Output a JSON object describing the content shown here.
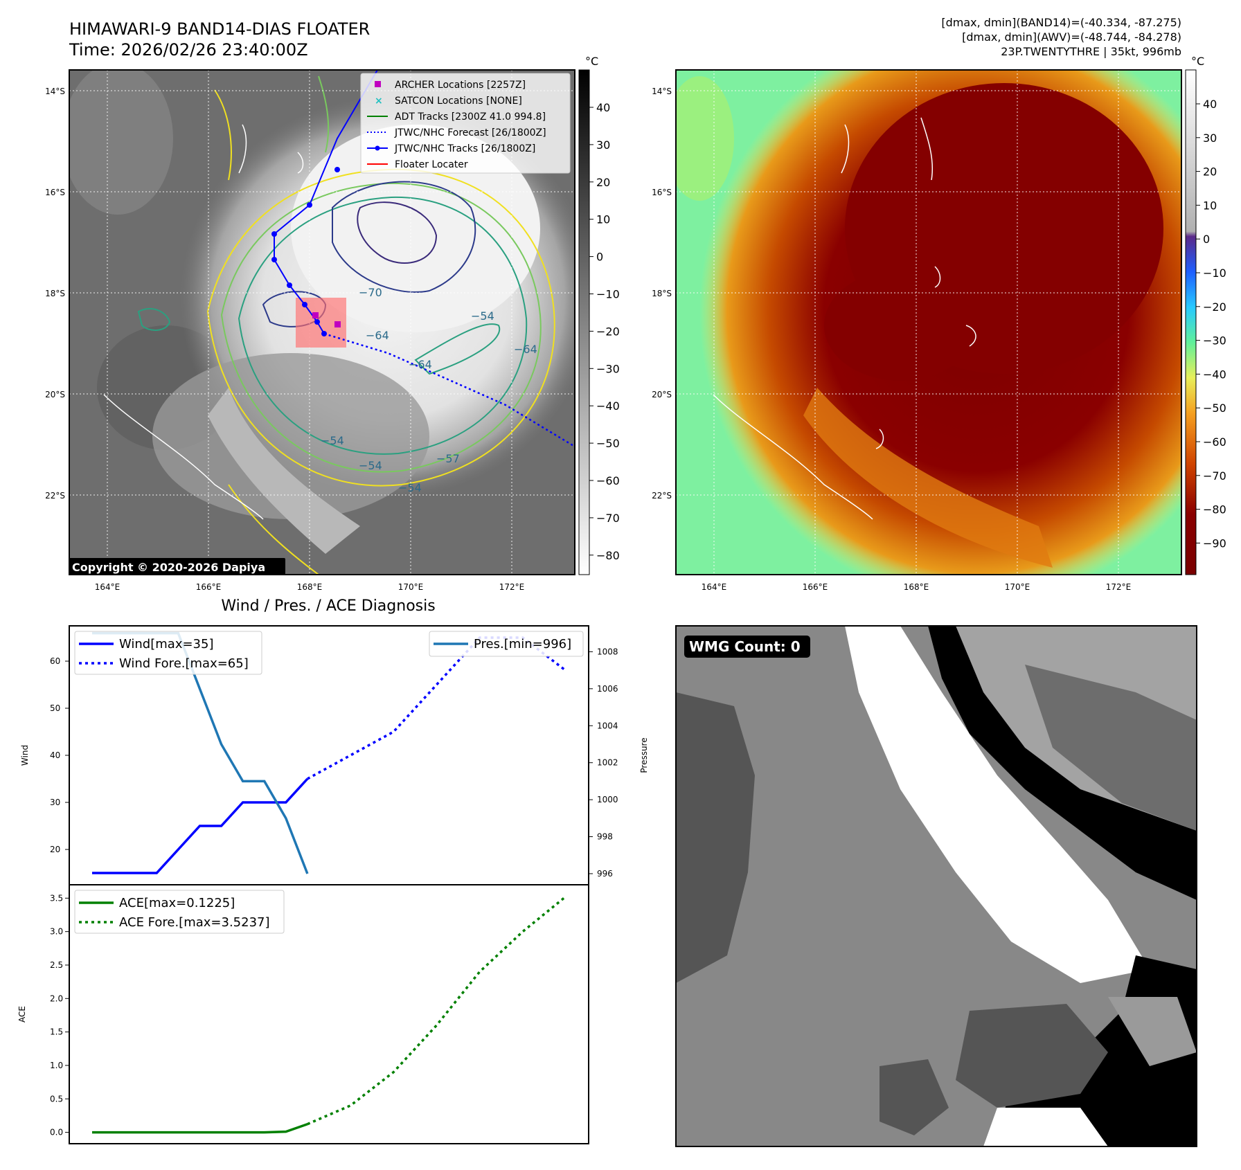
{
  "top_left": {
    "title_line1": "HIMAWARI-9 BAND14-DIAS FLOATER",
    "title_line2": "Time: 2026/02/26 23:40:00Z",
    "copyright": "Copyright © 2020-2026 Dapiya",
    "legend": [
      {
        "label": "ARCHER Locations [2257Z]",
        "marker": "square",
        "color": "#c000c0"
      },
      {
        "label": "SATCON Locations [NONE]",
        "marker": "x",
        "color": "#20c0c0"
      },
      {
        "label": "ADT Tracks [2300Z 41.0 994.8]",
        "marker": "line",
        "color": "#008000"
      },
      {
        "label": "JTWC/NHC Forecast [26/1800Z]",
        "marker": "dotted",
        "color": "#0000ff"
      },
      {
        "label": "JTWC/NHC Tracks [26/1800Z]",
        "marker": "dot-line",
        "color": "#0000ff"
      },
      {
        "label": "Floater Locater",
        "marker": "line",
        "color": "#ff0000"
      }
    ],
    "colorbar_unit": "°C",
    "colorbar_ticks": [
      "40",
      "30",
      "20",
      "10",
      "0",
      "−10",
      "−20",
      "−30",
      "−40",
      "−50",
      "−60",
      "−70",
      "−80"
    ],
    "contour_labels": [
      "−70",
      "−64",
      "−54",
      "−64",
      "−54",
      "−54",
      "−57",
      "−54",
      "−64"
    ],
    "lat_labels": [
      "14°S",
      "16°S",
      "18°S",
      "20°S",
      "22°S"
    ],
    "lon_labels": [
      "164°E",
      "166°E",
      "168°E",
      "170°E",
      "172°E"
    ]
  },
  "top_right": {
    "info_line1": "[dmax, dmin](BAND14)=(-40.334, -87.275)",
    "info_line2": "[dmax, dmin](AWV)=(-48.744, -84.278)",
    "info_line3": "23P.TWENTYTHRE | 35kt, 996mb",
    "colorbar_unit": "°C",
    "colorbar_ticks": [
      "40",
      "30",
      "20",
      "10",
      "0",
      "−10",
      "−20",
      "−30",
      "−40",
      "−50",
      "−60",
      "−70",
      "−80",
      "−90"
    ],
    "lat_labels": [
      "14°S",
      "16°S",
      "18°S",
      "20°S",
      "22°S"
    ],
    "lon_labels": [
      "164°E",
      "166°E",
      "168°E",
      "170°E",
      "172°E"
    ]
  },
  "bottom_right": {
    "badge": "WMG Count: 0"
  },
  "chart_data": [
    {
      "type": "line",
      "title": "Wind / Pres. / ACE Diagnosis",
      "ylabel": "Wind",
      "ylabel2": "Pressure",
      "ylim": [
        12.5,
        67.5
      ],
      "ylim2": [
        995.4,
        1009.4
      ],
      "yticks": [
        20,
        30,
        40,
        50,
        60
      ],
      "yticks2": [
        996,
        998,
        1000,
        1002,
        1004,
        1006,
        1008
      ],
      "x": [
        0,
        1,
        2,
        3,
        4,
        5,
        6,
        7,
        8,
        9,
        10,
        11,
        12,
        13,
        14,
        15,
        16,
        17,
        18,
        19,
        20,
        21,
        22
      ],
      "series": [
        {
          "name": "Wind[max=35]",
          "axis": "left",
          "color": "#0000ff",
          "style": "solid",
          "x": [
            0,
            1,
            2,
            3,
            4,
            5,
            6,
            7,
            8,
            9,
            10
          ],
          "values": [
            15,
            15,
            15,
            15,
            20,
            25,
            25,
            30,
            30,
            30,
            35
          ]
        },
        {
          "name": "Wind Fore.[max=65]",
          "axis": "left",
          "color": "#0000ff",
          "style": "dotted",
          "x": [
            10,
            12,
            14,
            16,
            18,
            20,
            22
          ],
          "values": [
            35,
            40,
            45,
            55,
            65,
            65,
            58
          ]
        },
        {
          "name": "Pres.[min=996]",
          "axis": "right",
          "color": "#1f77b4",
          "style": "solid",
          "x": [
            0,
            1,
            2,
            3,
            4,
            5,
            6,
            7,
            8,
            9,
            10
          ],
          "values": [
            1009,
            1009,
            1009,
            1009,
            1009,
            1006,
            1003,
            1001,
            1001,
            999,
            996
          ]
        }
      ]
    },
    {
      "type": "line",
      "ylabel": "ACE",
      "ylim": [
        -0.17,
        3.7
      ],
      "yticks": [
        0.0,
        0.5,
        1.0,
        1.5,
        2.0,
        2.5,
        3.0,
        3.5
      ],
      "ytick_labels": [
        "0.0",
        "0.5",
        "1.0",
        "1.5",
        "2.0",
        "2.5",
        "3.0",
        "3.5"
      ],
      "series": [
        {
          "name": "ACE[max=0.1225]",
          "color": "#008000",
          "style": "solid",
          "x": [
            0,
            1,
            2,
            3,
            4,
            5,
            6,
            7,
            8,
            9,
            10
          ],
          "values": [
            0,
            0,
            0,
            0,
            0,
            0,
            0,
            0,
            0,
            0.01,
            0.1225
          ]
        },
        {
          "name": "ACE Fore.[max=3.5237]",
          "color": "#008000",
          "style": "dotted",
          "x": [
            10,
            12,
            14,
            16,
            18,
            20,
            22
          ],
          "values": [
            0.1225,
            0.4,
            0.9,
            1.6,
            2.4,
            3.0,
            3.5237
          ]
        }
      ]
    }
  ]
}
